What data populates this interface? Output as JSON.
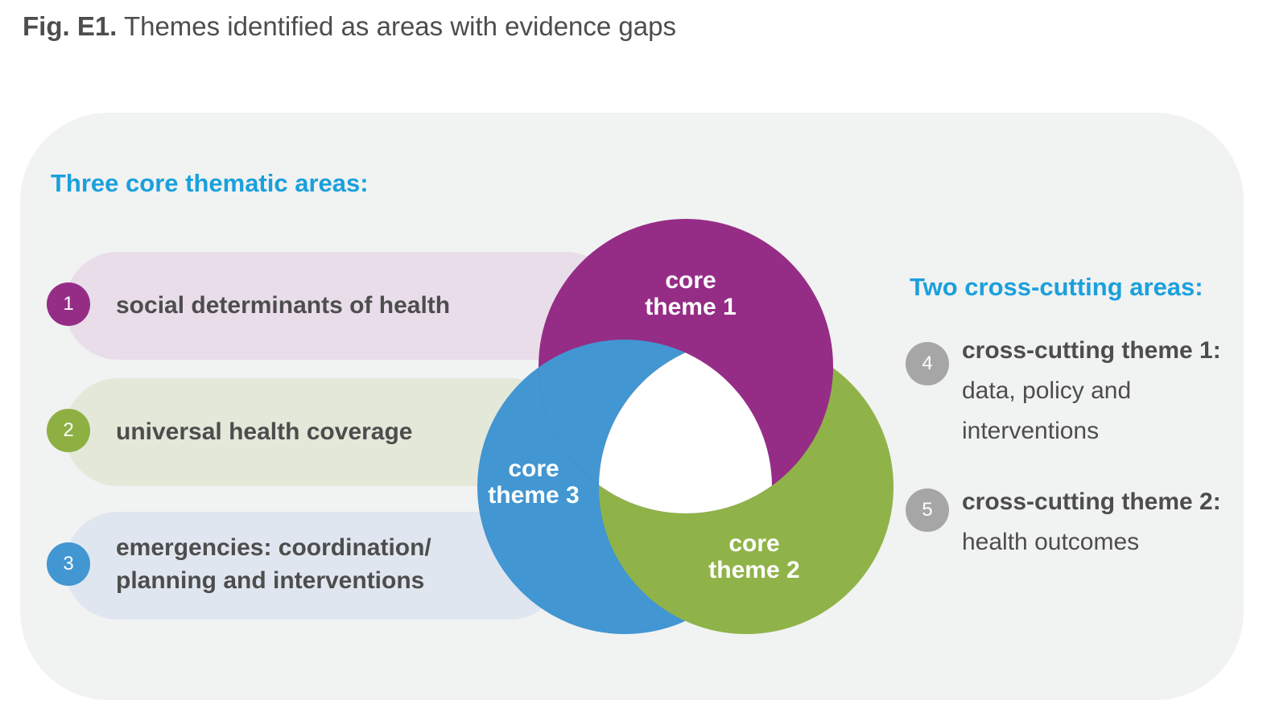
{
  "figure": {
    "label": "Fig. E1.",
    "title": "Themes identified as areas with evidence gaps"
  },
  "core": {
    "heading": "Three core thematic areas:",
    "items": [
      {
        "number": "1",
        "lines": [
          "social determinants of health"
        ]
      },
      {
        "number": "2",
        "lines": [
          "universal health coverage"
        ]
      },
      {
        "number": "3",
        "lines": [
          "emergencies: coordination/",
          "planning and interventions"
        ]
      }
    ]
  },
  "venn": {
    "circles": [
      {
        "lines": [
          "core",
          "theme 1"
        ]
      },
      {
        "lines": [
          "core",
          "theme 2"
        ]
      },
      {
        "lines": [
          "core",
          "theme 3"
        ]
      }
    ]
  },
  "cross_cutting": {
    "heading": "Two cross-cutting areas:",
    "items": [
      {
        "number": "4",
        "title": "cross-cutting theme 1:",
        "lines": [
          "data, policy and",
          "interventions"
        ]
      },
      {
        "number": "5",
        "title": "cross-cutting theme 2:",
        "lines": [
          "health outcomes"
        ]
      }
    ]
  }
}
